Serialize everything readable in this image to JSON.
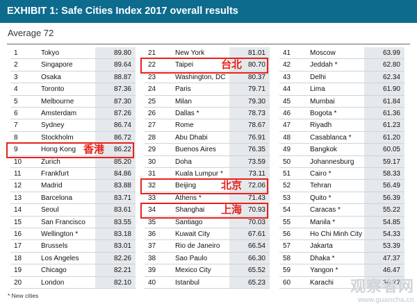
{
  "header": {
    "title": "EXHIBIT 1: Safe Cities Index 2017 overall results"
  },
  "average_label": "Average 72",
  "footnote": "* New cities",
  "watermark": {
    "text": "观察者网",
    "url": "www.guancha.cn"
  },
  "highlight_color": "#e8201a",
  "chart_data": {
    "type": "table",
    "columns": [
      [
        {
          "rank": "1",
          "city": "Tokyo",
          "score": "89.80"
        },
        {
          "rank": "2",
          "city": "Singapore",
          "score": "89.64"
        },
        {
          "rank": "3",
          "city": "Osaka",
          "score": "88.87"
        },
        {
          "rank": "4",
          "city": "Toronto",
          "score": "87.36"
        },
        {
          "rank": "5",
          "city": "Melbourne",
          "score": "87.30"
        },
        {
          "rank": "6",
          "city": "Amsterdam",
          "score": "87.26"
        },
        {
          "rank": "7",
          "city": "Sydney",
          "score": "86.74"
        },
        {
          "rank": "8",
          "city": "Stockholm",
          "score": "86.72"
        },
        {
          "rank": "9",
          "city": "Hong Kong",
          "score": "86.22",
          "note": "香港"
        },
        {
          "rank": "10",
          "city": "Zurich",
          "score": "85.20"
        },
        {
          "rank": "11",
          "city": "Frankfurt",
          "score": "84.86"
        },
        {
          "rank": "12",
          "city": "Madrid",
          "score": "83.88"
        },
        {
          "rank": "13",
          "city": "Barcelona",
          "score": "83.71"
        },
        {
          "rank": "14",
          "city": "Seoul",
          "score": "83.61"
        },
        {
          "rank": "15",
          "city": "San Francisco",
          "score": "83.55"
        },
        {
          "rank": "16",
          "city": "Wellington *",
          "score": "83.18"
        },
        {
          "rank": "17",
          "city": "Brussels",
          "score": "83.01"
        },
        {
          "rank": "18",
          "city": "Los Angeles",
          "score": "82.26"
        },
        {
          "rank": "19",
          "city": "Chicago",
          "score": "82.21"
        },
        {
          "rank": "20",
          "city": "London",
          "score": "82.10"
        }
      ],
      [
        {
          "rank": "21",
          "city": "New York",
          "score": "81.01"
        },
        {
          "rank": "22",
          "city": "Taipei",
          "score": "80.70",
          "note": "台北"
        },
        {
          "rank": "23",
          "city": "Washington, DC",
          "score": "80.37"
        },
        {
          "rank": "24",
          "city": "Paris",
          "score": "79.71"
        },
        {
          "rank": "25",
          "city": "Milan",
          "score": "79.30"
        },
        {
          "rank": "26",
          "city": "Dallas *",
          "score": "78.73"
        },
        {
          "rank": "27",
          "city": "Rome",
          "score": "78.67"
        },
        {
          "rank": "28",
          "city": "Abu Dhabi",
          "score": "76.91"
        },
        {
          "rank": "29",
          "city": "Buenos Aires",
          "score": "76.35"
        },
        {
          "rank": "30",
          "city": "Doha",
          "score": "73.59"
        },
        {
          "rank": "31",
          "city": "Kuala Lumpur *",
          "score": "73.11"
        },
        {
          "rank": "32",
          "city": "Beijing",
          "score": "72.06",
          "note": "北京"
        },
        {
          "rank": "33",
          "city": "Athens *",
          "score": "71.43"
        },
        {
          "rank": "34",
          "city": "Shanghai",
          "score": "70.93",
          "note": "上海"
        },
        {
          "rank": "35",
          "city": "Santiago",
          "score": "70.03"
        },
        {
          "rank": "36",
          "city": "Kuwait City",
          "score": "67.61"
        },
        {
          "rank": "37",
          "city": "Rio de Janeiro",
          "score": "66.54"
        },
        {
          "rank": "38",
          "city": "Sao Paulo",
          "score": "66.30"
        },
        {
          "rank": "39",
          "city": "Mexico City",
          "score": "65.52"
        },
        {
          "rank": "40",
          "city": "Istanbul",
          "score": "65.23"
        }
      ],
      [
        {
          "rank": "41",
          "city": "Moscow",
          "score": "63.99"
        },
        {
          "rank": "42",
          "city": "Jeddah *",
          "score": "62.80"
        },
        {
          "rank": "43",
          "city": "Delhi",
          "score": "62.34"
        },
        {
          "rank": "44",
          "city": "Lima",
          "score": "61.90"
        },
        {
          "rank": "45",
          "city": "Mumbai",
          "score": "61.84"
        },
        {
          "rank": "46",
          "city": "Bogota *",
          "score": "61.36"
        },
        {
          "rank": "47",
          "city": "Riyadh",
          "score": "61.23"
        },
        {
          "rank": "48",
          "city": "Casablanca *",
          "score": "61.20"
        },
        {
          "rank": "49",
          "city": "Bangkok",
          "score": "60.05"
        },
        {
          "rank": "50",
          "city": "Johannesburg",
          "score": "59.17"
        },
        {
          "rank": "51",
          "city": "Cairo *",
          "score": "58.33"
        },
        {
          "rank": "52",
          "city": "Tehran",
          "score": "56.49"
        },
        {
          "rank": "53",
          "city": "Quito *",
          "score": "56.39"
        },
        {
          "rank": "54",
          "city": "Caracas *",
          "score": "55.22"
        },
        {
          "rank": "55",
          "city": "Manila *",
          "score": "54.85"
        },
        {
          "rank": "56",
          "city": "Ho Chi Minh City",
          "score": "54.33"
        },
        {
          "rank": "57",
          "city": "Jakarta",
          "score": "53.39"
        },
        {
          "rank": "58",
          "city": "Dhaka *",
          "score": "47.37"
        },
        {
          "rank": "59",
          "city": "Yangon *",
          "score": "46.47"
        },
        {
          "rank": "60",
          "city": "Karachi",
          "score": "38.77"
        }
      ]
    ]
  }
}
